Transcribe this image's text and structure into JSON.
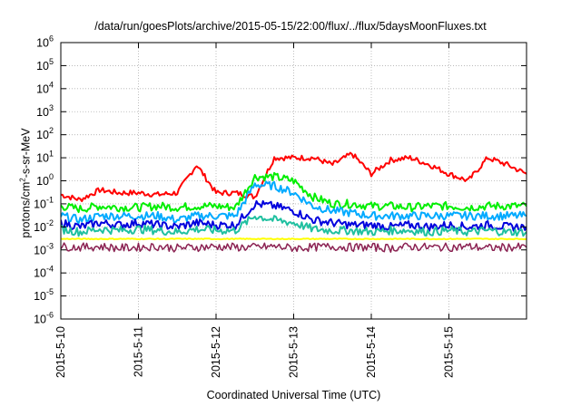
{
  "chart_data": {
    "type": "line",
    "title": "/data/run/goesPlots/archive/2015-05-15/22:00/flux/../flux/5daysMoonFluxes.txt",
    "xlabel": "Coordinated Universal Time (UTC)",
    "ylabel": {
      "pre": "protons/cm",
      "sup": "2",
      "post": "-s-sr-MeV"
    },
    "x_scale": "time",
    "y_scale": "log",
    "xlim": [
      "2015-05-10 00:00",
      "2015-05-16 00:00"
    ],
    "ylim": [
      1e-06,
      1000000.0
    ],
    "grid": true,
    "x_ticks": [
      "2015-5-10",
      "2015-5-11",
      "2015-5-12",
      "2015-5-13",
      "2015-5-14",
      "2015-5-15"
    ],
    "y_ticks": [
      {
        "value": 1000000.0,
        "base": "10",
        "exp": "6"
      },
      {
        "value": 100000.0,
        "base": "10",
        "exp": "5"
      },
      {
        "value": 10000.0,
        "base": "10",
        "exp": "4"
      },
      {
        "value": 1000.0,
        "base": "10",
        "exp": "3"
      },
      {
        "value": 100.0,
        "base": "10",
        "exp": "2"
      },
      {
        "value": 10.0,
        "base": "10",
        "exp": "1"
      },
      {
        "value": 1.0,
        "base": "10",
        "exp": "0"
      },
      {
        "value": 0.1,
        "base": "10",
        "exp": "-1"
      },
      {
        "value": 0.01,
        "base": "10",
        "exp": "-2"
      },
      {
        "value": 0.001,
        "base": "10",
        "exp": "-3"
      },
      {
        "value": 0.0001,
        "base": "10",
        "exp": "-4"
      },
      {
        "value": 1e-05,
        "base": "10",
        "exp": "-5"
      },
      {
        "value": 1e-06,
        "base": "10",
        "exp": "-6"
      }
    ],
    "x": [
      "2015-05-10 00:00",
      "2015-05-10 06:00",
      "2015-05-10 12:00",
      "2015-05-10 18:00",
      "2015-05-11 00:00",
      "2015-05-11 06:00",
      "2015-05-11 12:00",
      "2015-05-11 18:00",
      "2015-05-12 00:00",
      "2015-05-12 06:00",
      "2015-05-12 12:00",
      "2015-05-12 18:00",
      "2015-05-13 00:00",
      "2015-05-13 06:00",
      "2015-05-13 12:00",
      "2015-05-13 18:00",
      "2015-05-14 00:00",
      "2015-05-14 06:00",
      "2015-05-14 12:00",
      "2015-05-14 18:00",
      "2015-05-15 00:00",
      "2015-05-15 06:00",
      "2015-05-15 12:00",
      "2015-05-15 18:00",
      "2015-05-16 00:00"
    ],
    "series": [
      {
        "color": "#ff0000",
        "values": [
          0.25,
          0.15,
          0.4,
          0.3,
          0.3,
          0.25,
          0.3,
          5,
          0.3,
          0.3,
          0.2,
          10,
          10,
          10,
          5,
          15,
          2,
          8,
          10,
          5,
          2,
          1,
          10,
          5,
          2
        ]
      },
      {
        "color": "#00ee00",
        "values": [
          0.08,
          0.06,
          0.08,
          0.07,
          0.07,
          0.08,
          0.07,
          0.08,
          0.08,
          0.07,
          1.5,
          1.5,
          1,
          0.2,
          0.1,
          0.1,
          0.08,
          0.08,
          0.07,
          0.08,
          0.08,
          0.07,
          0.08,
          0.08,
          0.08
        ]
      },
      {
        "color": "#00aaff",
        "values": [
          0.03,
          0.02,
          0.03,
          0.03,
          0.03,
          0.03,
          0.02,
          0.03,
          0.03,
          0.03,
          0.7,
          0.6,
          0.3,
          0.08,
          0.05,
          0.04,
          0.03,
          0.03,
          0.03,
          0.03,
          0.03,
          0.03,
          0.03,
          0.03,
          0.03
        ]
      },
      {
        "color": "#0000dd",
        "values": [
          0.015,
          0.01,
          0.015,
          0.012,
          0.015,
          0.012,
          0.01,
          0.015,
          0.012,
          0.012,
          0.1,
          0.08,
          0.05,
          0.02,
          0.015,
          0.012,
          0.012,
          0.01,
          0.012,
          0.01,
          0.012,
          0.01,
          0.012,
          0.01,
          0.01
        ]
      },
      {
        "color": "#20c0a0",
        "values": [
          0.008,
          0.006,
          0.008,
          0.007,
          0.008,
          0.007,
          0.006,
          0.008,
          0.007,
          0.007,
          0.03,
          0.02,
          0.015,
          0.008,
          0.007,
          0.007,
          0.006,
          0.007,
          0.007,
          0.006,
          0.007,
          0.006,
          0.007,
          0.006,
          0.006
        ]
      },
      {
        "color": "#ffff00",
        "values": [
          0.003,
          0.003,
          0.003,
          0.003,
          0.003,
          0.003,
          0.003,
          0.003,
          0.003,
          0.003,
          0.003,
          0.003,
          0.003,
          0.003,
          0.003,
          0.003,
          0.003,
          0.003,
          0.003,
          0.003,
          0.003,
          0.003,
          0.003,
          0.003,
          0.003
        ]
      },
      {
        "color": "#8b2252",
        "values": [
          0.0014,
          0.0013,
          0.0014,
          0.0012,
          0.0013,
          0.0014,
          0.0012,
          0.0013,
          0.0014,
          0.0013,
          0.0013,
          0.0014,
          0.0012,
          0.0013,
          0.0014,
          0.0013,
          0.0013,
          0.0012,
          0.0014,
          0.0013,
          0.0013,
          0.0014,
          0.0012,
          0.0013,
          0.0013
        ]
      }
    ]
  }
}
